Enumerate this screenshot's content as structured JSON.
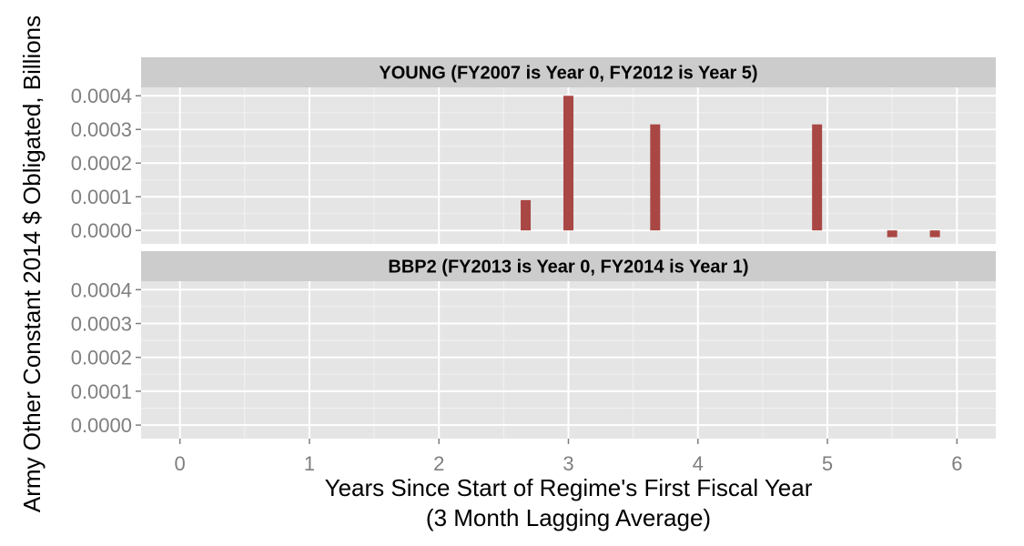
{
  "chart_data": {
    "type": "bar",
    "ylabel": "Army Other Constant 2014 $ Obligated, Billions",
    "xlabel_line1": "Years Since Start of Regime's First Fiscal Year",
    "xlabel_line2": "(3 Month Lagging Average)",
    "xlim": [
      -0.3,
      6.3
    ],
    "ylim": [
      -4e-05,
      0.000425
    ],
    "x_ticks": [
      0,
      1,
      2,
      3,
      4,
      5,
      6
    ],
    "x_tick_labels": [
      "0",
      "1",
      "2",
      "3",
      "4",
      "5",
      "6"
    ],
    "y_ticks": [
      0,
      0.0001,
      0.0002,
      0.0003,
      0.0004
    ],
    "y_tick_labels": [
      "0.0000",
      "0.0001",
      "0.0002",
      "0.0003",
      "0.0004"
    ],
    "bar_color": "#A94744",
    "panel_background": "#E5E5E5",
    "strip_background": "#CCCCCC",
    "grid": true,
    "panels": [
      {
        "title": "YOUNG (FY2007 is Year 0, FY2012 is Year 5)",
        "x": [
          2.67,
          3.0,
          3.67,
          4.92,
          5.5,
          5.83
        ],
        "values": [
          9e-05,
          0.0004,
          0.000315,
          0.000315,
          -2e-05,
          -2e-05
        ]
      },
      {
        "title": "BBP2 (FY2013 is Year 0, FY2014 is Year 1)",
        "x": [],
        "values": []
      }
    ]
  }
}
